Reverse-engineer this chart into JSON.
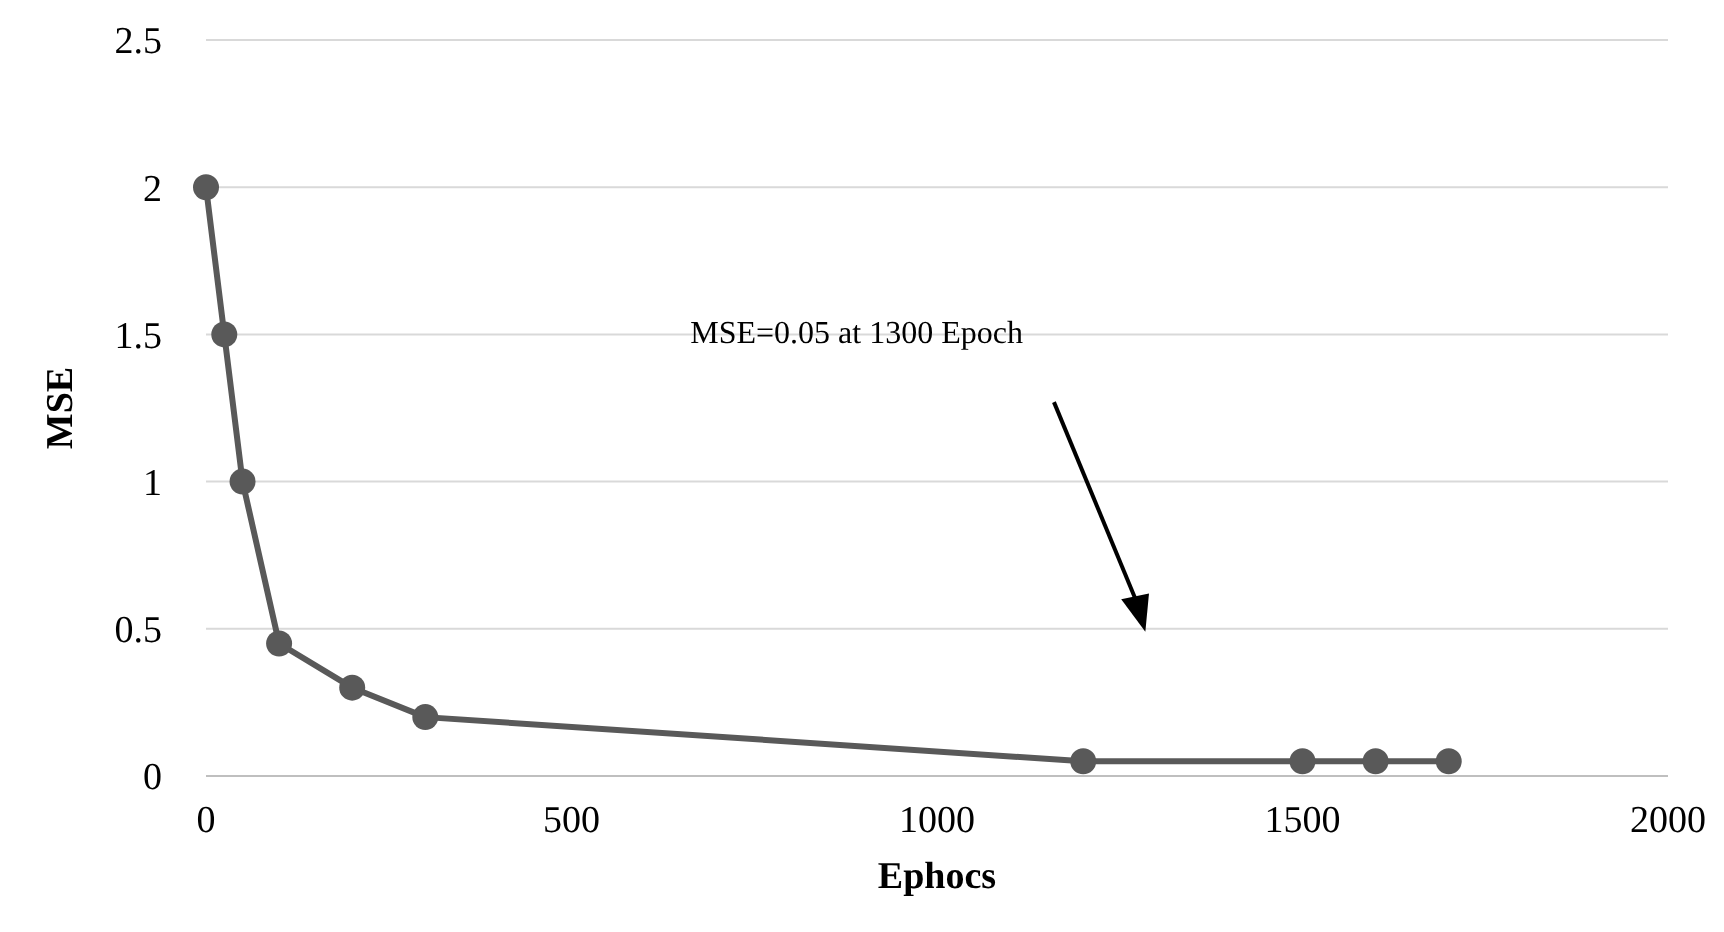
{
  "chart_data": {
    "type": "line",
    "xlabel": "Ephocs",
    "ylabel": "MSE",
    "x": [
      0,
      25,
      50,
      100,
      200,
      300,
      1200,
      1500,
      1600,
      1700
    ],
    "series": [
      {
        "color": "#595959",
        "values": [
          2,
          1.5,
          1,
          0.45,
          0.3,
          0.2,
          0.05,
          0.05,
          0.05,
          0.05
        ]
      }
    ],
    "xlim": [
      0,
      2000
    ],
    "xticks": [
      0,
      500,
      1000,
      1500,
      2000
    ],
    "ylim": [
      0,
      2.5
    ],
    "yticks": [
      0,
      0.5,
      1,
      1.5,
      2,
      2.5
    ],
    "grid": "y",
    "marker": "circle",
    "line_style": "solid",
    "annotations": [
      "MSE=0.05 at 1300 Epoch"
    ]
  }
}
